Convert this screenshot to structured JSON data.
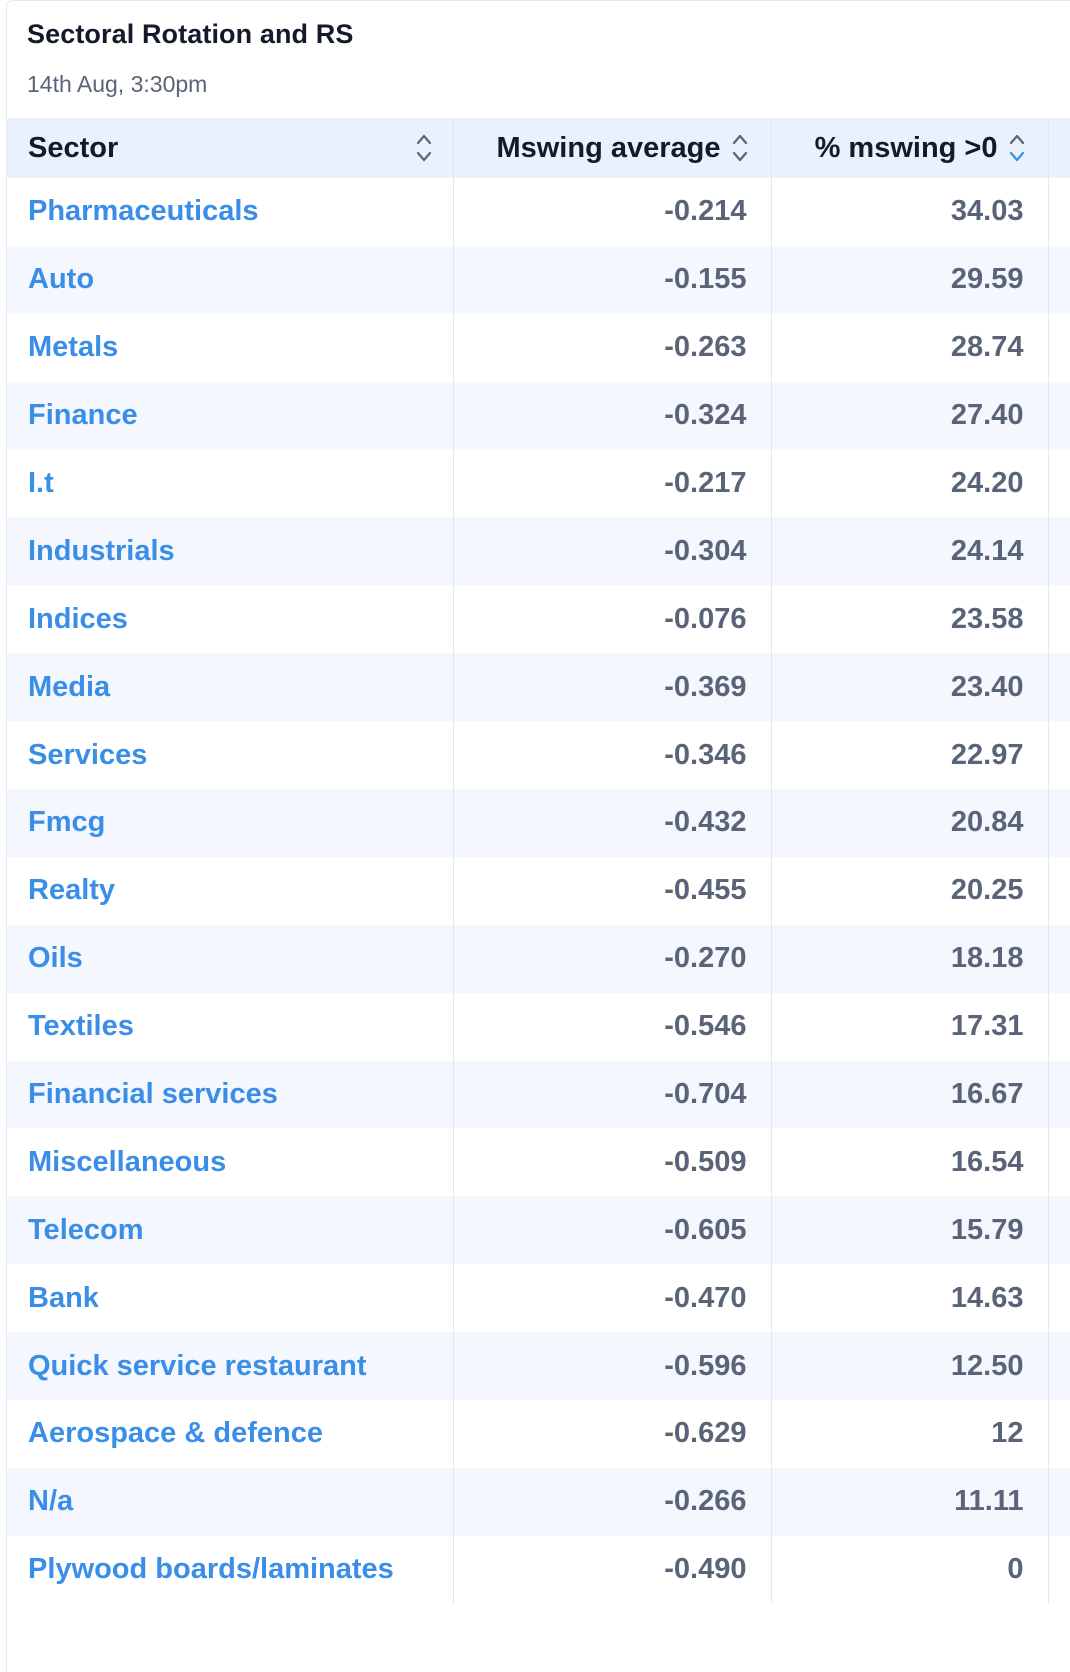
{
  "header": {
    "title": "Sectoral Rotation and RS",
    "timestamp": "14th Aug, 3:30pm"
  },
  "columns": {
    "sector": "Sector",
    "mswing_average": "Mswing average",
    "pct_mswing_gt0": "% mswing >0"
  },
  "rows": [
    {
      "sector": "Pharmaceuticals",
      "mswing_average": "-0.214",
      "pct_mswing_gt0": "34.03"
    },
    {
      "sector": "Auto",
      "mswing_average": "-0.155",
      "pct_mswing_gt0": "29.59"
    },
    {
      "sector": "Metals",
      "mswing_average": "-0.263",
      "pct_mswing_gt0": "28.74"
    },
    {
      "sector": "Finance",
      "mswing_average": "-0.324",
      "pct_mswing_gt0": "27.40"
    },
    {
      "sector": "I.t",
      "mswing_average": "-0.217",
      "pct_mswing_gt0": "24.20"
    },
    {
      "sector": "Industrials",
      "mswing_average": "-0.304",
      "pct_mswing_gt0": "24.14"
    },
    {
      "sector": "Indices",
      "mswing_average": "-0.076",
      "pct_mswing_gt0": "23.58"
    },
    {
      "sector": "Media",
      "mswing_average": "-0.369",
      "pct_mswing_gt0": "23.40"
    },
    {
      "sector": "Services",
      "mswing_average": "-0.346",
      "pct_mswing_gt0": "22.97"
    },
    {
      "sector": "Fmcg",
      "mswing_average": "-0.432",
      "pct_mswing_gt0": "20.84"
    },
    {
      "sector": "Realty",
      "mswing_average": "-0.455",
      "pct_mswing_gt0": "20.25"
    },
    {
      "sector": "Oils",
      "mswing_average": "-0.270",
      "pct_mswing_gt0": "18.18"
    },
    {
      "sector": "Textiles",
      "mswing_average": "-0.546",
      "pct_mswing_gt0": "17.31"
    },
    {
      "sector": "Financial services",
      "mswing_average": "-0.704",
      "pct_mswing_gt0": "16.67"
    },
    {
      "sector": "Miscellaneous",
      "mswing_average": "-0.509",
      "pct_mswing_gt0": "16.54"
    },
    {
      "sector": "Telecom",
      "mswing_average": "-0.605",
      "pct_mswing_gt0": "15.79"
    },
    {
      "sector": "Bank",
      "mswing_average": "-0.470",
      "pct_mswing_gt0": "14.63"
    },
    {
      "sector": "Quick service restaurant",
      "mswing_average": "-0.596",
      "pct_mswing_gt0": "12.50"
    },
    {
      "sector": "Aerospace & defence",
      "mswing_average": "-0.629",
      "pct_mswing_gt0": "12"
    },
    {
      "sector": "N/a",
      "mswing_average": "-0.266",
      "pct_mswing_gt0": "11.11"
    },
    {
      "sector": "Plywood boards/laminates",
      "mswing_average": "-0.490",
      "pct_mswing_gt0": "0"
    }
  ],
  "sort": {
    "active_column": "pct_mswing_gt0",
    "direction": "descending"
  },
  "colors": {
    "link": "#3b8ee8",
    "header_bg": "#eaf1fd",
    "stripe_bg": "#f4f7fd",
    "number_text": "#5a6478",
    "title_text": "#141a2b",
    "sort_icon_inactive": "#5a6478",
    "sort_icon_active": "#3b8ee8"
  }
}
